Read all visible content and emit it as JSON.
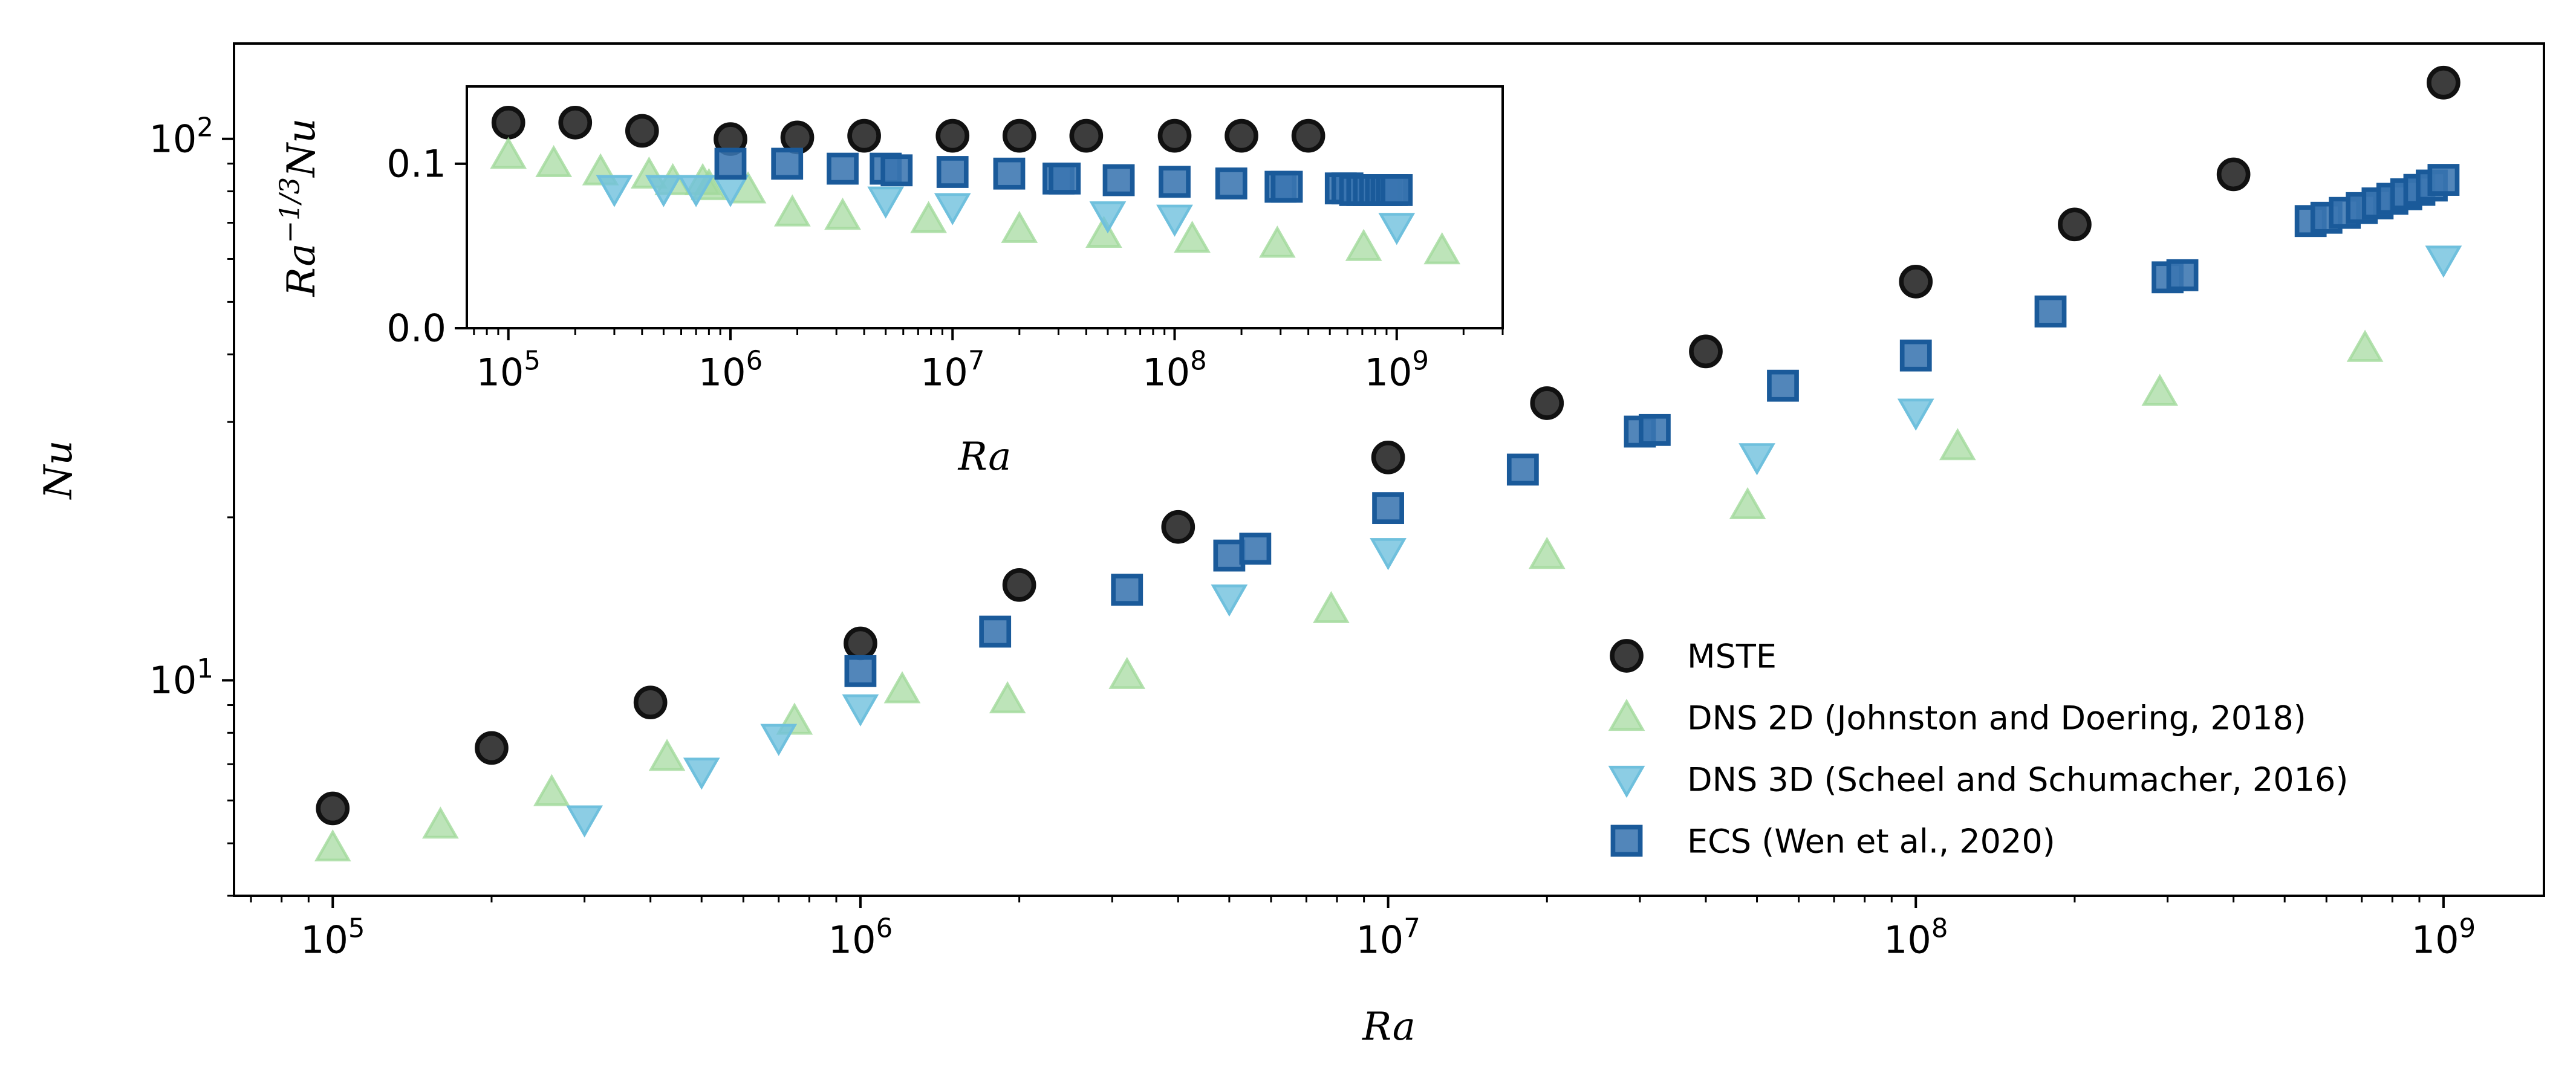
{
  "chart_data": [
    {
      "type": "scatter",
      "panel": "main",
      "xlabel": "Ra",
      "ylabel": "Nu",
      "xscale": "log",
      "yscale": "log",
      "xlim": [
        65000.0,
        1550000000.0
      ],
      "ylim": [
        4.0,
        150
      ],
      "xticks": [
        {
          "value": 100000.0,
          "base": "10",
          "exp": "5"
        },
        {
          "value": 1000000.0,
          "base": "10",
          "exp": "6"
        },
        {
          "value": 10000000.0,
          "base": "10",
          "exp": "7"
        },
        {
          "value": 100000000.0,
          "base": "10",
          "exp": "8"
        },
        {
          "value": 1000000000.0,
          "base": "10",
          "exp": "9"
        }
      ],
      "yticks": [
        {
          "value": 10,
          "base": "10",
          "exp": "1"
        },
        {
          "value": 100,
          "base": "10",
          "exp": "2"
        }
      ],
      "legend_position": "lower-right",
      "grid": false,
      "series": [
        {
          "name": "MSTE",
          "marker": "circle",
          "color": "#333333",
          "edge": "#111111",
          "points": [
            [
              100000.0,
              5.8
            ],
            [
              200000.0,
              7.5
            ],
            [
              400000.0,
              9.1
            ],
            [
              1000000.0,
              11.7
            ],
            [
              2000000.0,
              15.0
            ],
            [
              4000000.0,
              19.2
            ],
            [
              10000000.0,
              25.8
            ],
            [
              20000000.0,
              32.5
            ],
            [
              40000000.0,
              40.5
            ],
            [
              100000000.0,
              54.5
            ],
            [
              200000000.0,
              69.5
            ],
            [
              400000000.0,
              86.0
            ],
            [
              1000000000.0,
              127.0
            ]
          ]
        },
        {
          "name": "DNS 2D (Johnston and Doering, 2018)",
          "marker": "triangle-up",
          "color": "#a1d99b",
          "points": [
            [
              100000.0,
              4.9
            ],
            [
              160000.0,
              5.4
            ],
            [
              260000.0,
              6.2
            ],
            [
              430000.0,
              7.2
            ],
            [
              750000.0,
              8.4
            ],
            [
              1200000.0,
              9.6
            ],
            [
              1900000.0,
              9.2
            ],
            [
              3200000.0,
              10.2
            ],
            [
              7800000.0,
              13.5
            ],
            [
              20000000.0,
              17.0
            ],
            [
              48000000.0,
              21.0
            ],
            [
              120000000.0,
              27.0
            ],
            [
              290000000.0,
              34.0
            ],
            [
              710000000.0,
              41.0
            ]
          ]
        },
        {
          "name": "DNS 3D (Scheel and Schumacher, 2016)",
          "marker": "triangle-down",
          "color": "#6fc0dd",
          "points": [
            [
              300000.0,
              5.55
            ],
            [
              500000.0,
              6.8
            ],
            [
              700000.0,
              7.85
            ],
            [
              1000000.0,
              8.9
            ],
            [
              5000000.0,
              14.2
            ],
            [
              10000000.0,
              17.3
            ],
            [
              50000000.0,
              25.9
            ],
            [
              100000000.0,
              31.3
            ],
            [
              1000000000.0,
              60.0
            ]
          ]
        },
        {
          "name": "ECS (Wen et al., 2020)",
          "marker": "square",
          "color": "#3a75b0",
          "edge": "#1a5a9a",
          "points": [
            [
              1000000.0,
              10.4
            ],
            [
              1800000.0,
              12.3
            ],
            [
              3200000.0,
              14.7
            ],
            [
              5000000.0,
              17.0
            ],
            [
              5600000.0,
              17.5
            ],
            [
              10000000.0,
              20.8
            ],
            [
              18000000.0,
              24.5
            ],
            [
              30000000.0,
              28.8
            ],
            [
              32000000.0,
              29.0
            ],
            [
              56000000.0,
              35.0
            ],
            [
              100000000.0,
              39.8
            ],
            [
              180000000.0,
              48.0
            ],
            [
              300000000.0,
              55.5
            ],
            [
              320000000.0,
              56.0
            ],
            [
              560000000.0,
              70.5
            ],
            [
              600000000.0,
              71.5
            ],
            [
              650000000.0,
              73.0
            ],
            [
              700000000.0,
              74.5
            ],
            [
              750000000.0,
              76.0
            ],
            [
              800000000.0,
              77.5
            ],
            [
              850000000.0,
              79.0
            ],
            [
              900000000.0,
              80.5
            ],
            [
              950000000.0,
              82.0
            ],
            [
              1000000000.0,
              84.0
            ]
          ]
        }
      ]
    },
    {
      "type": "scatter",
      "panel": "inset",
      "xlabel": "Ra",
      "ylabel": "Ra",
      "ylabel_superscript": "−1/3",
      "ylabel_suffix": "Nu",
      "xscale": "log",
      "yscale": "linear",
      "xlim": [
        65000.0,
        3000000000.0
      ],
      "ylim": [
        0.0,
        0.147
      ],
      "xticks": [
        {
          "value": 100000.0,
          "base": "10",
          "exp": "5"
        },
        {
          "value": 1000000.0,
          "base": "10",
          "exp": "6"
        },
        {
          "value": 10000000.0,
          "base": "10",
          "exp": "7"
        },
        {
          "value": 100000000.0,
          "base": "10",
          "exp": "8"
        },
        {
          "value": 1000000000.0,
          "base": "10",
          "exp": "9"
        }
      ],
      "yticks": [
        {
          "value": 0.0,
          "label": "0.0"
        },
        {
          "value": 0.1,
          "label": "0.1"
        }
      ],
      "grid": false,
      "series": [
        {
          "name": "MSTE",
          "marker": "circle",
          "color": "#333333",
          "edge": "#111111",
          "points": [
            [
              100000.0,
              0.125
            ],
            [
              200000.0,
              0.125
            ],
            [
              400000.0,
              0.12
            ],
            [
              1000000.0,
              0.115
            ],
            [
              2000000.0,
              0.116
            ],
            [
              4000000.0,
              0.117
            ],
            [
              10000000.0,
              0.117
            ],
            [
              20000000.0,
              0.117
            ],
            [
              40000000.0,
              0.117
            ],
            [
              100000000.0,
              0.117
            ],
            [
              200000000.0,
              0.117
            ],
            [
              400000000.0,
              0.117
            ]
          ]
        },
        {
          "name": "DNS 2D (Johnston and Doering, 2018)",
          "marker": "triangle-up",
          "color": "#a1d99b",
          "points": [
            [
              100000.0,
              0.105
            ],
            [
              160000.0,
              0.1
            ],
            [
              260000.0,
              0.095
            ],
            [
              430000.0,
              0.093
            ],
            [
              550000.0,
              0.089
            ],
            [
              750000.0,
              0.089
            ],
            [
              800000.0,
              0.086
            ],
            [
              1200000.0,
              0.084
            ],
            [
              1900000.0,
              0.07
            ],
            [
              3200000.0,
              0.068
            ],
            [
              7800000.0,
              0.066
            ],
            [
              20000000.0,
              0.06
            ],
            [
              48000000.0,
              0.057
            ],
            [
              120000000.0,
              0.054
            ],
            [
              290000000.0,
              0.051
            ],
            [
              710000000.0,
              0.049
            ],
            [
              1600000000.0,
              0.047
            ]
          ]
        },
        {
          "name": "DNS 3D (Scheel and Schumacher, 2016)",
          "marker": "triangle-down",
          "color": "#6fc0dd",
          "points": [
            [
              300000.0,
              0.085
            ],
            [
              500000.0,
              0.085
            ],
            [
              700000.0,
              0.085
            ],
            [
              1000000.0,
              0.085
            ],
            [
              5000000.0,
              0.078
            ],
            [
              10000000.0,
              0.074
            ],
            [
              50000000.0,
              0.069
            ],
            [
              100000000.0,
              0.067
            ],
            [
              1000000000.0,
              0.062
            ]
          ]
        },
        {
          "name": "ECS (Wen et al., 2020)",
          "marker": "square",
          "color": "#3a75b0",
          "edge": "#1a5a9a",
          "points": [
            [
              1000000.0,
              0.1
            ],
            [
              1800000.0,
              0.1
            ],
            [
              3200000.0,
              0.097
            ],
            [
              5000000.0,
              0.097
            ],
            [
              5600000.0,
              0.096
            ],
            [
              10000000.0,
              0.095
            ],
            [
              18000000.0,
              0.094
            ],
            [
              30000000.0,
              0.091
            ],
            [
              32000000.0,
              0.091
            ],
            [
              56000000.0,
              0.09
            ],
            [
              100000000.0,
              0.089
            ],
            [
              180000000.0,
              0.088
            ],
            [
              300000000.0,
              0.086
            ],
            [
              320000000.0,
              0.086
            ],
            [
              560000000.0,
              0.085
            ],
            [
              600000000.0,
              0.085
            ],
            [
              650000000.0,
              0.084
            ],
            [
              700000000.0,
              0.084
            ],
            [
              750000000.0,
              0.084
            ],
            [
              800000000.0,
              0.084
            ],
            [
              850000000.0,
              0.084
            ],
            [
              900000000.0,
              0.084
            ],
            [
              950000000.0,
              0.084
            ],
            [
              1000000000.0,
              0.084
            ]
          ]
        }
      ]
    }
  ]
}
